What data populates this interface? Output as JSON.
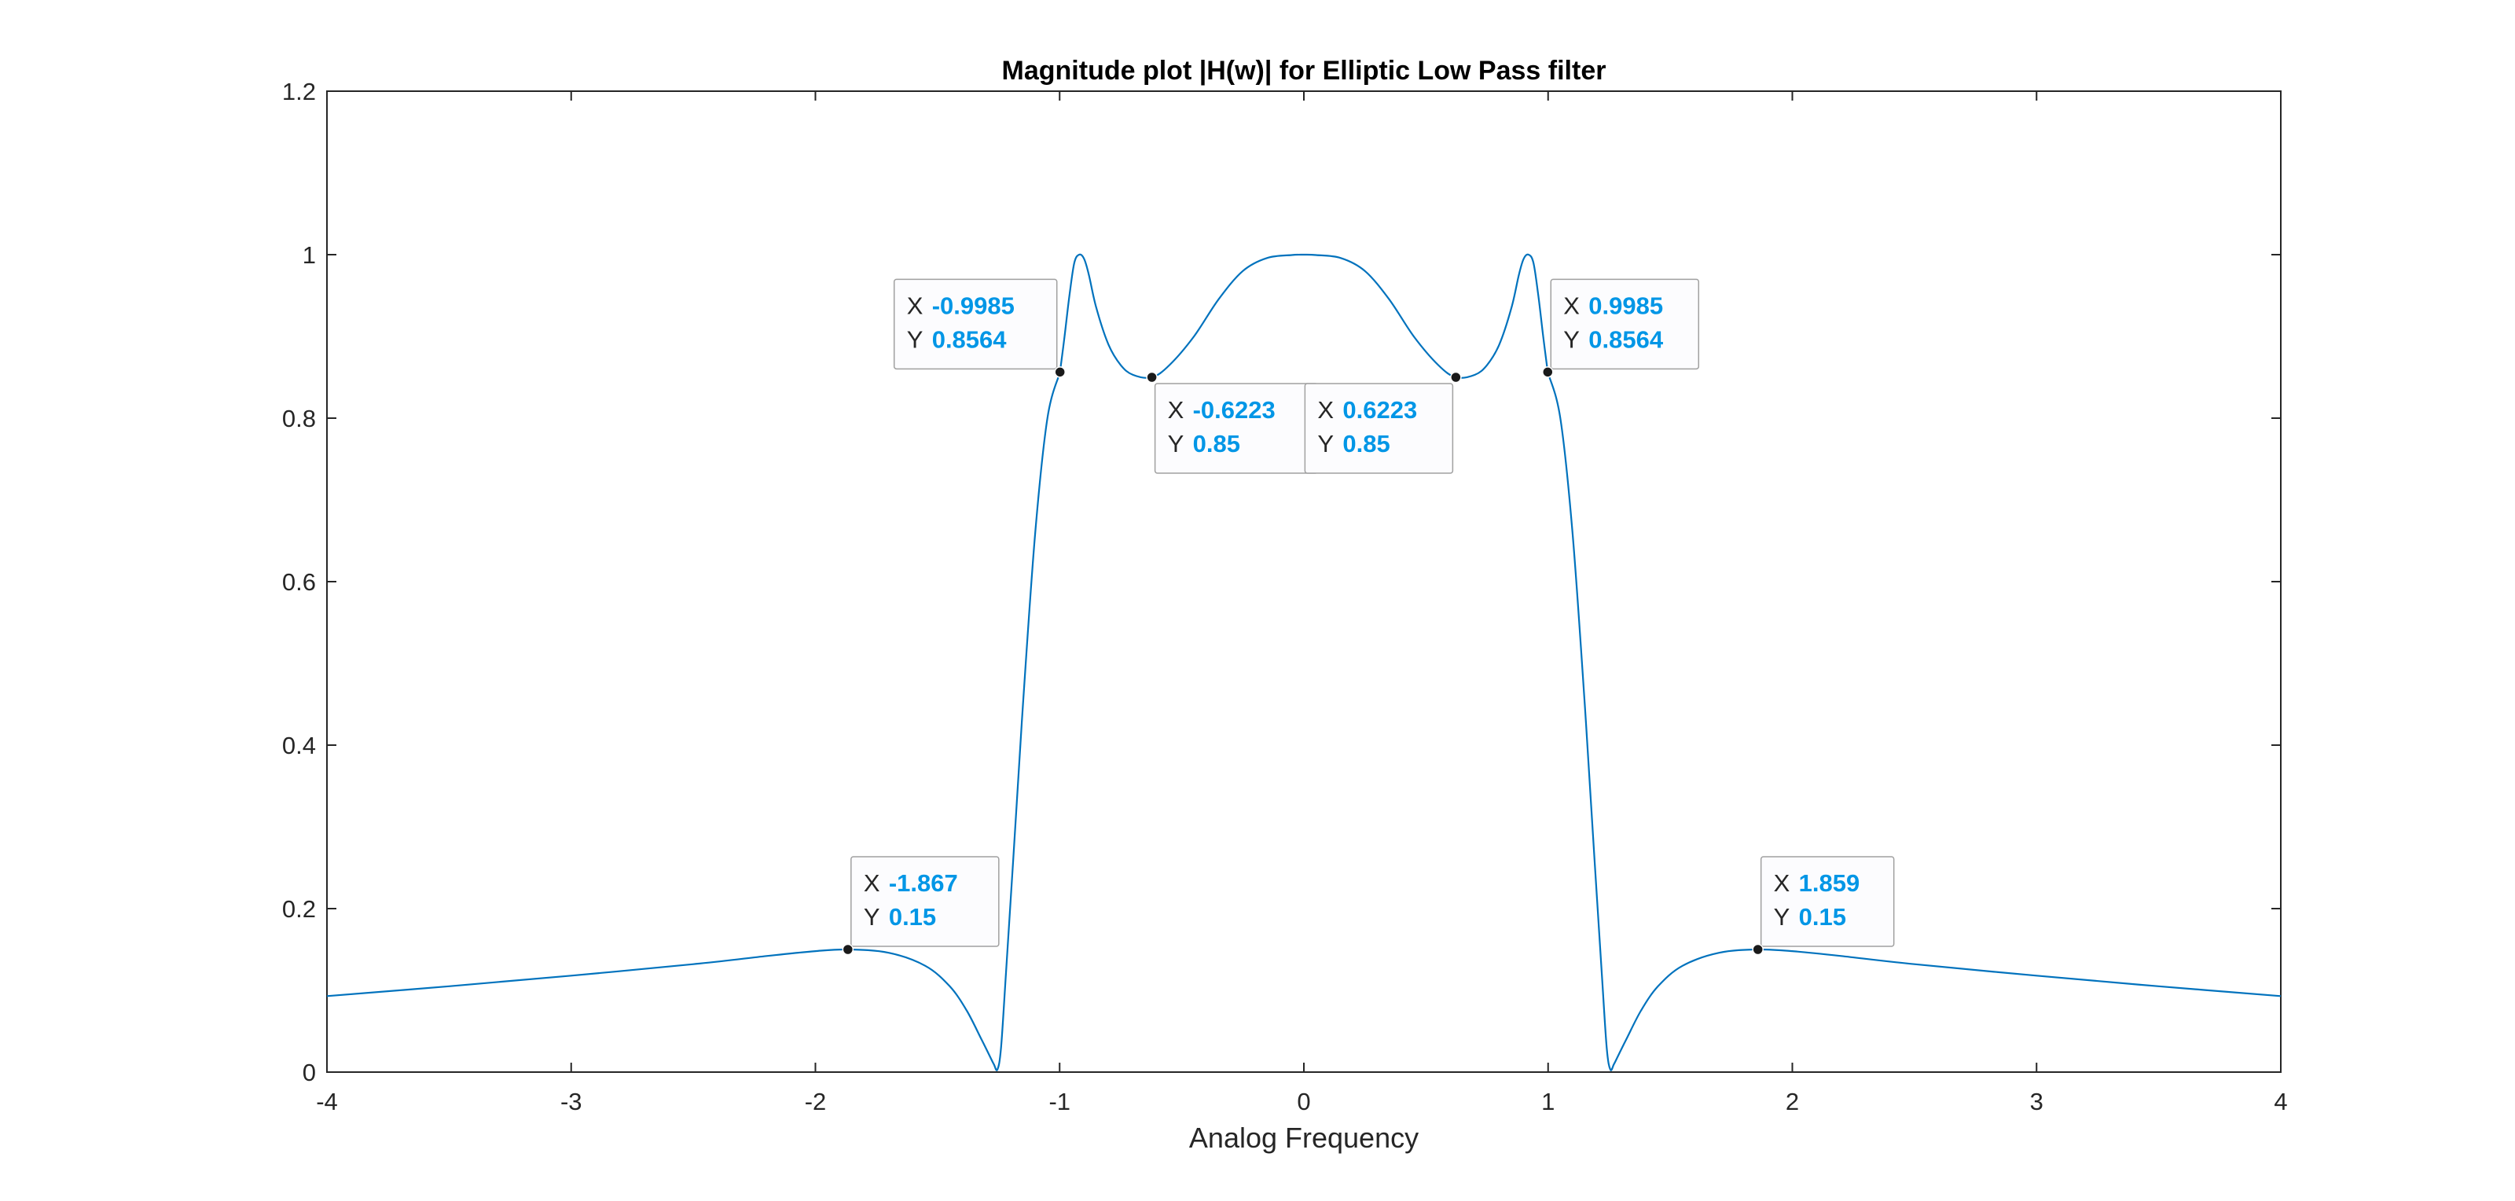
{
  "chart_data": {
    "type": "line",
    "title": "Magnitude plot |H(w)| for Elliptic Low Pass filter",
    "xlabel": "Analog Frequency",
    "ylabel": "",
    "xlim": [
      -4,
      4
    ],
    "ylim": [
      0,
      1.2
    ],
    "xticks": [
      "-4",
      "-3",
      "-2",
      "-1",
      "0",
      "1",
      "2",
      "3",
      "4"
    ],
    "yticks": [
      "0",
      "0.2",
      "0.4",
      "0.6",
      "0.8",
      "1",
      "1.2"
    ],
    "grid": false,
    "series": [
      {
        "color": "#0072BD",
        "x": [
          -4,
          -3.5,
          -3,
          -2.5,
          -2.2,
          -2,
          -1.867,
          -1.7,
          -1.55,
          -1.45,
          -1.38,
          -1.32,
          -1.29,
          -1.27,
          -1.255,
          -1.24,
          -1.22,
          -1.19,
          -1.15,
          -1.1,
          -1.05,
          -1.0,
          -0.9985,
          -0.98,
          -0.96,
          -0.94,
          -0.92,
          -0.9,
          -0.88,
          -0.85,
          -0.8,
          -0.75,
          -0.7,
          -0.6223,
          -0.55,
          -0.45,
          -0.35,
          -0.25,
          -0.15,
          -0.05,
          0,
          0.05,
          0.15,
          0.25,
          0.35,
          0.45,
          0.55,
          0.6223,
          0.7,
          0.75,
          0.8,
          0.85,
          0.88,
          0.9,
          0.92,
          0.94,
          0.96,
          0.98,
          0.9985,
          1.0,
          1.05,
          1.1,
          1.15,
          1.19,
          1.22,
          1.24,
          1.255,
          1.27,
          1.29,
          1.32,
          1.38,
          1.45,
          1.55,
          1.7,
          1.859,
          2,
          2.2,
          2.5,
          3,
          3.5,
          4
        ],
        "y": [
          0.093,
          0.105,
          0.118,
          0.132,
          0.142,
          0.148,
          0.15,
          0.146,
          0.13,
          0.105,
          0.075,
          0.04,
          0.022,
          0.01,
          0.003,
          0.03,
          0.12,
          0.26,
          0.45,
          0.66,
          0.8,
          0.855,
          0.8564,
          0.9,
          0.95,
          0.99,
          1.0,
          0.995,
          0.975,
          0.935,
          0.89,
          0.865,
          0.853,
          0.85,
          0.865,
          0.9,
          0.945,
          0.98,
          0.996,
          0.9995,
          1.0,
          0.9995,
          0.996,
          0.98,
          0.945,
          0.9,
          0.865,
          0.85,
          0.853,
          0.865,
          0.89,
          0.935,
          0.975,
          0.995,
          1.0,
          0.99,
          0.95,
          0.9,
          0.8564,
          0.855,
          0.8,
          0.66,
          0.45,
          0.26,
          0.12,
          0.03,
          0.003,
          0.01,
          0.022,
          0.04,
          0.075,
          0.105,
          0.13,
          0.146,
          0.15,
          0.148,
          0.142,
          0.132,
          0.118,
          0.105,
          0.093
        ]
      }
    ],
    "annotations": [
      {
        "x_label": "X",
        "x_value": "-0.9985",
        "y_label": "Y",
        "y_value": "0.8564",
        "x": -0.9985,
        "y": 0.8564,
        "side": "upper-left"
      },
      {
        "x_label": "X",
        "x_value": "-0.6223",
        "y_label": "Y",
        "y_value": "0.85",
        "x": -0.6223,
        "y": 0.85,
        "side": "lower-right"
      },
      {
        "x_label": "X",
        "x_value": "0.6223",
        "y_label": "Y",
        "y_value": "0.85",
        "x": 0.6223,
        "y": 0.85,
        "side": "lower-left"
      },
      {
        "x_label": "X",
        "x_value": "0.9985",
        "y_label": "Y",
        "y_value": "0.8564",
        "x": 0.9985,
        "y": 0.8564,
        "side": "upper-right"
      },
      {
        "x_label": "X",
        "x_value": "-1.867",
        "y_label": "Y",
        "y_value": "0.15",
        "x": -1.867,
        "y": 0.15,
        "side": "upper-right"
      },
      {
        "x_label": "X",
        "x_value": "1.859",
        "y_label": "Y",
        "y_value": "0.15",
        "x": 1.859,
        "y": 0.15,
        "side": "upper-right"
      }
    ],
    "colors": {
      "line": "#0072BD",
      "tip_value": "#0096E6",
      "axes": "#262626",
      "marker": "#1a1a1a"
    }
  }
}
